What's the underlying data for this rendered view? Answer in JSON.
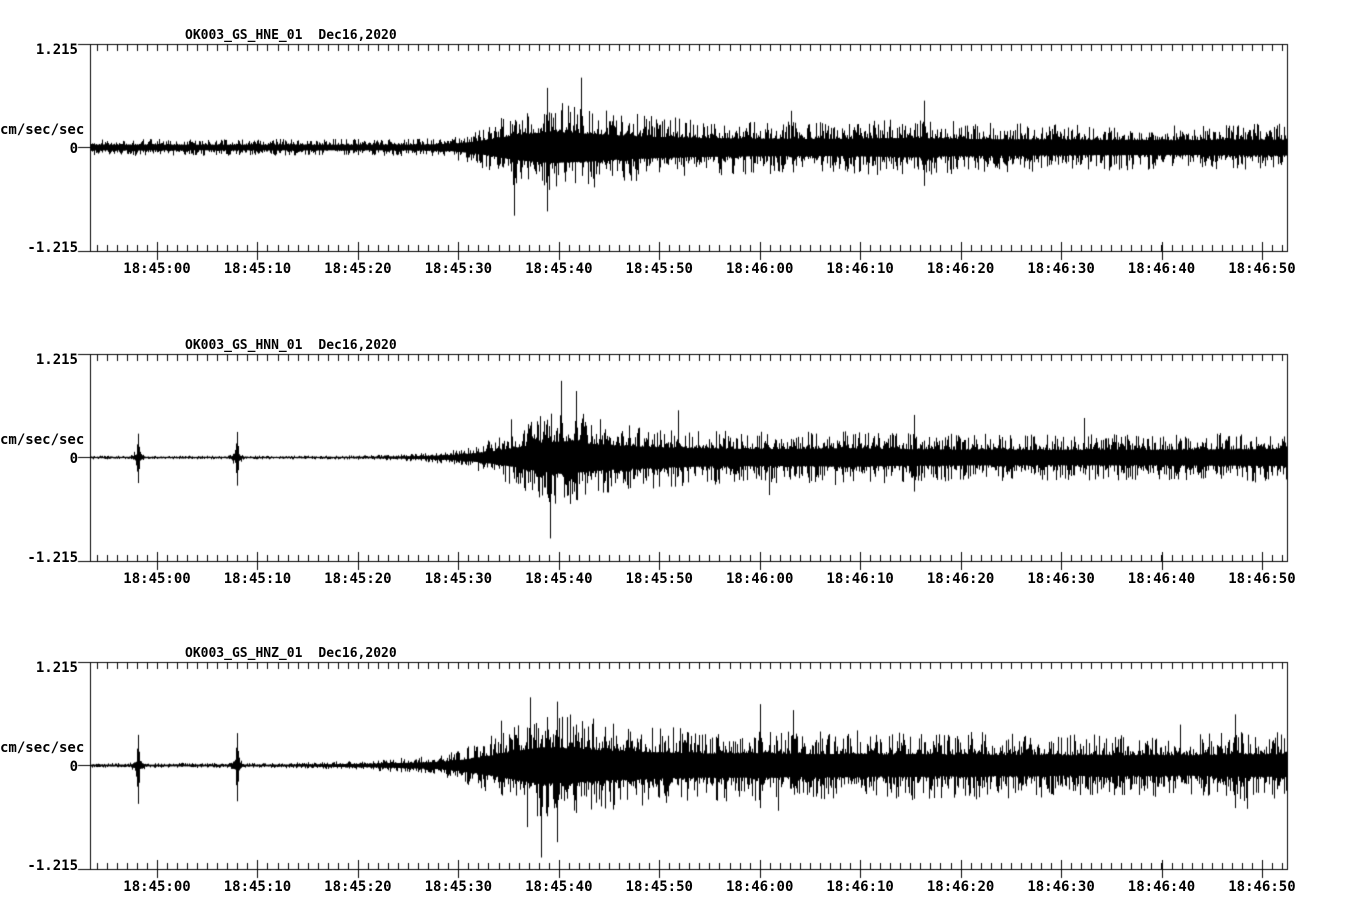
{
  "figure": {
    "background_color": "#ffffff",
    "trace_color": "#000000",
    "station": "OK003",
    "date": "Dec16,2020"
  },
  "chart_data": {
    "type": "line",
    "subtype": "seismogram-multitrace",
    "y_axis": {
      "unit": "cm/sec/sec",
      "max_label": "1.215",
      "zero_label": "0",
      "min_label": "-1.215",
      "ymax": 1.215,
      "ymin": -1.215
    },
    "x_axis": {
      "labels": [
        "18:45:00",
        "18:45:10",
        "18:45:20",
        "18:45:30",
        "18:45:40",
        "18:45:50",
        "18:46:00",
        "18:46:10",
        "18:46:20",
        "18:46:30",
        "18:46:40",
        "18:46:50"
      ],
      "major_tick_interval_s": 10,
      "minor_tick_interval_s": 1,
      "window_start": "18:44:53",
      "window_end": "18:46:53",
      "duration_s": 119.2
    },
    "panels": [
      {
        "title": "OK003_GS_HNE_01",
        "date_label": "Dec16,2020",
        "channel": "HNE",
        "seed": 1337,
        "envelope": [
          [
            0,
            0.1
          ],
          [
            30,
            0.1
          ],
          [
            34,
            0.11
          ],
          [
            36,
            0.13
          ],
          [
            38,
            0.2
          ],
          [
            40,
            0.3
          ],
          [
            42,
            0.42
          ],
          [
            44,
            0.5
          ],
          [
            46,
            0.55
          ],
          [
            48,
            0.52
          ],
          [
            50,
            0.48
          ],
          [
            53,
            0.42
          ],
          [
            56,
            0.38
          ],
          [
            60,
            0.34
          ],
          [
            64,
            0.32
          ],
          [
            68,
            0.31
          ],
          [
            72,
            0.3
          ],
          [
            76,
            0.31
          ],
          [
            80,
            0.33
          ],
          [
            82,
            0.35
          ],
          [
            84,
            0.32
          ],
          [
            88,
            0.3
          ],
          [
            92,
            0.29
          ],
          [
            96,
            0.28
          ],
          [
            100,
            0.27
          ],
          [
            104,
            0.27
          ],
          [
            108,
            0.26
          ],
          [
            112,
            0.27
          ],
          [
            116,
            0.28
          ],
          [
            119.2,
            0.28
          ]
        ],
        "spikes": [],
        "extremes": [
          [
            42.2,
            0,
            0.8
          ],
          [
            45.5,
            0.7,
            0.75
          ],
          [
            48.9,
            0.82,
            0
          ],
          [
            83,
            0.55,
            0.45
          ]
        ]
      },
      {
        "title": "OK003_GS_HNN_01",
        "date_label": "Dec16,2020",
        "channel": "HNN",
        "seed": 4242,
        "envelope": [
          [
            0,
            0.022
          ],
          [
            24,
            0.022
          ],
          [
            28,
            0.028
          ],
          [
            31,
            0.04
          ],
          [
            34,
            0.06
          ],
          [
            36,
            0.09
          ],
          [
            38,
            0.14
          ],
          [
            40,
            0.22
          ],
          [
            42,
            0.32
          ],
          [
            44,
            0.45
          ],
          [
            46,
            0.55
          ],
          [
            47.5,
            0.58
          ],
          [
            49,
            0.52
          ],
          [
            51,
            0.45
          ],
          [
            54,
            0.4
          ],
          [
            57,
            0.36
          ],
          [
            60,
            0.33
          ],
          [
            64,
            0.31
          ],
          [
            68,
            0.3
          ],
          [
            72,
            0.31
          ],
          [
            75,
            0.33
          ],
          [
            78,
            0.31
          ],
          [
            82,
            0.29
          ],
          [
            86,
            0.28
          ],
          [
            90,
            0.28
          ],
          [
            94,
            0.27
          ],
          [
            98,
            0.27
          ],
          [
            102,
            0.28
          ],
          [
            106,
            0.27
          ],
          [
            110,
            0.28
          ],
          [
            114,
            0.29
          ],
          [
            119.2,
            0.3
          ]
        ],
        "spikes": [
          [
            4.8,
            0.1,
            0.3
          ],
          [
            14.6,
            0.1,
            0.3
          ]
        ],
        "extremes": [
          [
            4.8,
            0.28,
            0.3
          ],
          [
            14.6,
            0.3,
            0.33
          ],
          [
            45.8,
            0,
            0.95
          ],
          [
            46.9,
            0.9,
            0
          ],
          [
            48.4,
            0.78,
            0
          ],
          [
            82,
            0.5,
            0.4
          ]
        ]
      },
      {
        "title": "OK003_GS_HNZ_01",
        "date_label": "Dec16,2020",
        "channel": "HNZ",
        "seed": 9001,
        "envelope": [
          [
            0,
            0.03
          ],
          [
            18,
            0.03
          ],
          [
            22,
            0.04
          ],
          [
            25,
            0.05
          ],
          [
            28,
            0.06
          ],
          [
            31,
            0.09
          ],
          [
            33,
            0.11
          ],
          [
            35,
            0.13
          ],
          [
            37,
            0.2
          ],
          [
            39,
            0.3
          ],
          [
            41,
            0.42
          ],
          [
            43,
            0.55
          ],
          [
            45,
            0.65
          ],
          [
            47,
            0.62
          ],
          [
            49,
            0.58
          ],
          [
            52,
            0.52
          ],
          [
            55,
            0.48
          ],
          [
            58,
            0.45
          ],
          [
            61,
            0.43
          ],
          [
            64,
            0.42
          ],
          [
            67,
            0.44
          ],
          [
            70,
            0.41
          ],
          [
            73,
            0.4
          ],
          [
            76,
            0.42
          ],
          [
            79,
            0.39
          ],
          [
            82,
            0.41
          ],
          [
            85,
            0.38
          ],
          [
            88,
            0.4
          ],
          [
            91,
            0.37
          ],
          [
            94,
            0.39
          ],
          [
            97,
            0.36
          ],
          [
            100,
            0.38
          ],
          [
            103,
            0.36
          ],
          [
            106,
            0.37
          ],
          [
            109,
            0.36
          ],
          [
            112,
            0.38
          ],
          [
            115,
            0.4
          ],
          [
            119.2,
            0.4
          ]
        ],
        "spikes": [
          [
            4.8,
            0.12,
            0.3
          ],
          [
            14.6,
            0.12,
            0.3
          ]
        ],
        "extremes": [
          [
            4.8,
            0.36,
            0.45
          ],
          [
            14.6,
            0.38,
            0.42
          ],
          [
            43.8,
            0.8,
            0
          ],
          [
            44.9,
            0,
            1.08
          ],
          [
            46.5,
            0.75,
            0.9
          ],
          [
            66.7,
            0.72,
            0.5
          ],
          [
            70,
            0.65,
            0
          ],
          [
            114,
            0.6,
            0.5
          ]
        ]
      }
    ]
  }
}
